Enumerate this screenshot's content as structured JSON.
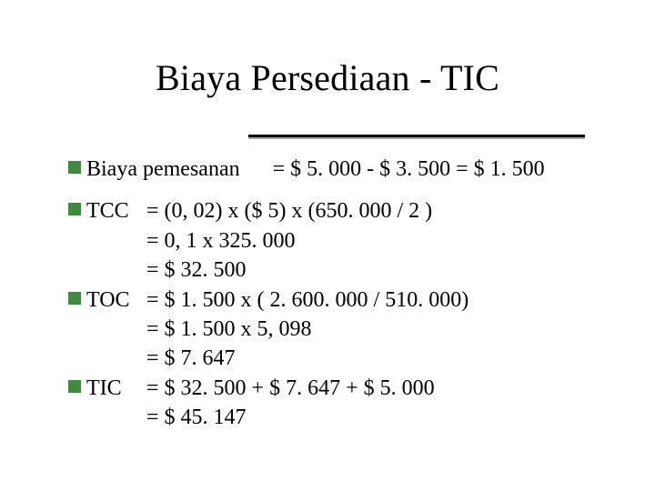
{
  "colors": {
    "background": "#ffffff",
    "text": "#000000",
    "bullet": "#3e8a3e",
    "rule": "#000000"
  },
  "typography": {
    "title_fontsize_pt": 30,
    "body_fontsize_pt": 18,
    "font_family": "Times New Roman"
  },
  "title": "Biaya Persediaan - TIC",
  "line_pemesanan": {
    "label": "Biaya pemesanan",
    "value": "= $ 5. 000 - $ 3. 500 = $ 1. 500"
  },
  "tcc": {
    "label": "TCC",
    "l1": "= (0, 02) x ($ 5) x (650. 000 / 2 )",
    "l2": "= 0, 1 x 325. 000",
    "l3": "= $ 32. 500"
  },
  "toc": {
    "label": "TOC",
    "l1": "= $ 1. 500 x ( 2. 600. 000 / 510. 000)",
    "l2": "= $ 1. 500 x 5, 098",
    "l3": "= $ 7. 647"
  },
  "tic": {
    "label": "TIC",
    "l1": "= $ 32. 500 + $ 7. 647 + $ 5. 000",
    "l2": "= $ 45. 147"
  }
}
